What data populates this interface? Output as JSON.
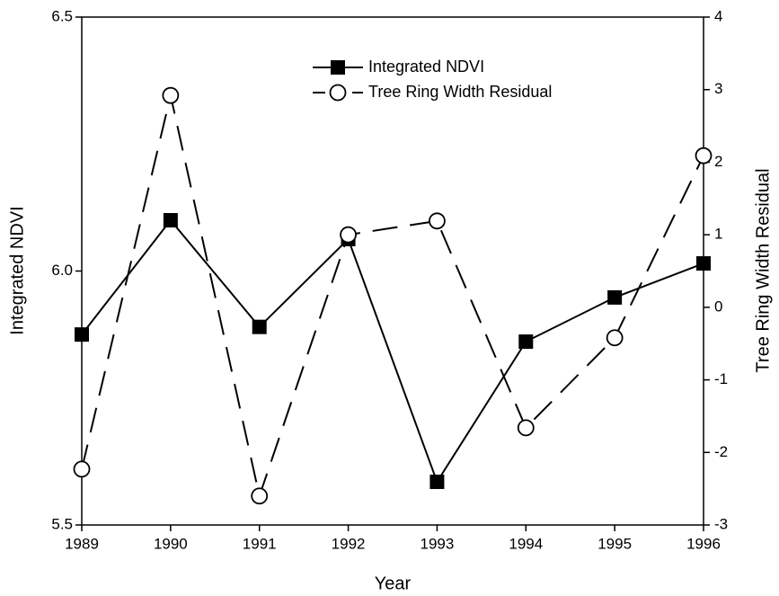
{
  "chart_data": {
    "type": "line",
    "x_label": "Year",
    "y_label": "Integrated NDVI",
    "y2_label": "Tree Ring Width Residual",
    "x": [
      1989,
      1990,
      1991,
      1992,
      1993,
      1994,
      1995,
      1996
    ],
    "xlim": [
      1989,
      1996
    ],
    "xticks": [
      1989,
      1990,
      1991,
      1992,
      1993,
      1994,
      1995,
      1996
    ],
    "ylim": [
      5.5,
      6.5
    ],
    "yticks": [
      {
        "value": 5.5,
        "label": "5.5"
      },
      {
        "value": 6.0,
        "label": "6.0"
      },
      {
        "value": 6.5,
        "label": "6.5"
      }
    ],
    "y2lim": [
      -3,
      4
    ],
    "y2ticks": [
      -3,
      -2,
      -1,
      0,
      1,
      2,
      3,
      4
    ],
    "grid": false,
    "legend": "top",
    "series": [
      {
        "name": "Integrated NDVI",
        "color": "#000000",
        "marker": "square",
        "dash": "solid",
        "values": [
          5.875,
          6.1,
          5.89,
          6.063,
          5.585,
          5.861,
          5.948,
          6.015
        ]
      },
      {
        "name": "Tree Ring Width Residual",
        "color": "#000000",
        "marker": "open-circle",
        "dash": "dashed",
        "axis": "y2",
        "values": [
          -2.23,
          2.92,
          -2.6,
          1.0,
          1.19,
          -1.66,
          -0.42,
          2.09
        ]
      }
    ]
  }
}
